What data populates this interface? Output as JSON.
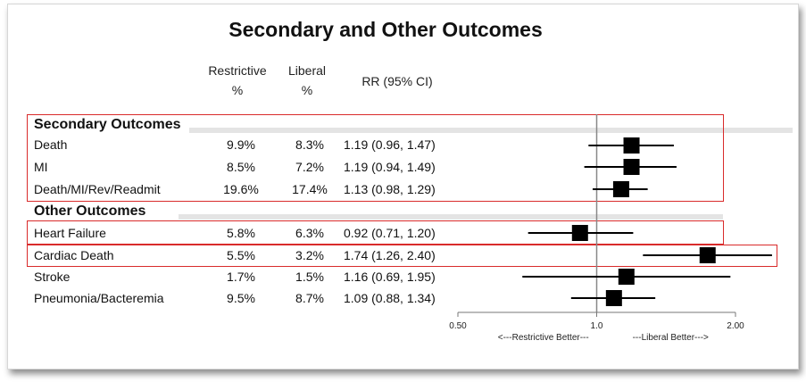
{
  "title": "Secondary and Other Outcomes",
  "columns": {
    "restrictive_line1": "Restrictive",
    "restrictive_line2": "%",
    "liberal_line1": "Liberal",
    "liberal_line2": "%",
    "rr": "RR (95% CI)"
  },
  "sections": [
    {
      "label": "Secondary Outcomes"
    },
    {
      "label": "Other Outcomes"
    }
  ],
  "colors": {
    "highlight_box": "#d92b2b",
    "marker": "#000000"
  },
  "chart_data": {
    "type": "forest",
    "x_scale": "log",
    "xlim": [
      0.5,
      2.0
    ],
    "ticks": [
      0.5,
      1.0,
      2.0
    ],
    "tick_labels": [
      "0.50",
      "1.0",
      "2.00"
    ],
    "reference_line": 1.0,
    "left_annotation": "<---Restrictive Better---",
    "right_annotation": "---Liberal Better--->",
    "rows": [
      {
        "section": 0,
        "label": "Death",
        "restrictive": "9.9%",
        "liberal": "8.3%",
        "rr_text": "1.19 (0.96, 1.47)",
        "rr": 1.19,
        "lo": 0.96,
        "hi": 1.47
      },
      {
        "section": 0,
        "label": "MI",
        "restrictive": "8.5%",
        "liberal": "7.2%",
        "rr_text": "1.19 (0.94, 1.49)",
        "rr": 1.19,
        "lo": 0.94,
        "hi": 1.49
      },
      {
        "section": 0,
        "label": "Death/MI/Rev/Readmit",
        "restrictive": "19.6%",
        "liberal": "17.4%",
        "rr_text": "1.13 (0.98, 1.29)",
        "rr": 1.13,
        "lo": 0.98,
        "hi": 1.29
      },
      {
        "section": 1,
        "label": "Heart Failure",
        "restrictive": "5.8%",
        "liberal": "6.3%",
        "rr_text": "0.92 (0.71, 1.20)",
        "rr": 0.92,
        "lo": 0.71,
        "hi": 1.2
      },
      {
        "section": 1,
        "label": "Cardiac Death",
        "restrictive": "5.5%",
        "liberal": "3.2%",
        "rr_text": "1.74 (1.26, 2.40)",
        "rr": 1.74,
        "lo": 1.26,
        "hi": 2.4
      },
      {
        "section": 1,
        "label": "Stroke",
        "restrictive": "1.7%",
        "liberal": "1.5%",
        "rr_text": "1.16 (0.69, 1.95)",
        "rr": 1.16,
        "lo": 0.69,
        "hi": 1.95
      },
      {
        "section": 1,
        "label": "Pneumonia/Bacteremia",
        "restrictive": "9.5%",
        "liberal": "8.7%",
        "rr_text": "1.09 (0.88, 1.34)",
        "rr": 1.09,
        "lo": 0.88,
        "hi": 1.34
      }
    ]
  }
}
